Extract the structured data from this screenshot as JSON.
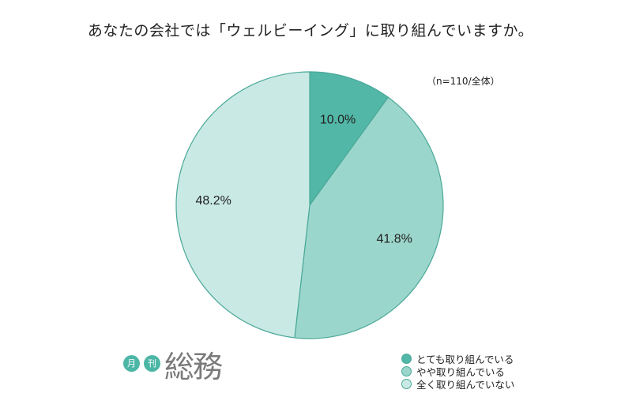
{
  "header": {
    "title": "あなたの会社では「ウェルビーイング」に取り組んでいますか。",
    "note": "（n=110/全体）"
  },
  "chart_data": {
    "type": "pie",
    "categories": [
      "とても取り組んでいる",
      "やや取り組んでいる",
      "全く取り組んでいない"
    ],
    "values": [
      10.0,
      41.8,
      48.2
    ],
    "data_labels": [
      "10.0%",
      "41.8%",
      "48.2%"
    ],
    "colors": [
      "#52b7a7",
      "#9bd6cc",
      "#c9e9e4"
    ],
    "legend_position": "bottom-right"
  },
  "brand": {
    "badge1": "月",
    "badge2": "刊",
    "name": "総務",
    "color": "#4cb6a6"
  }
}
